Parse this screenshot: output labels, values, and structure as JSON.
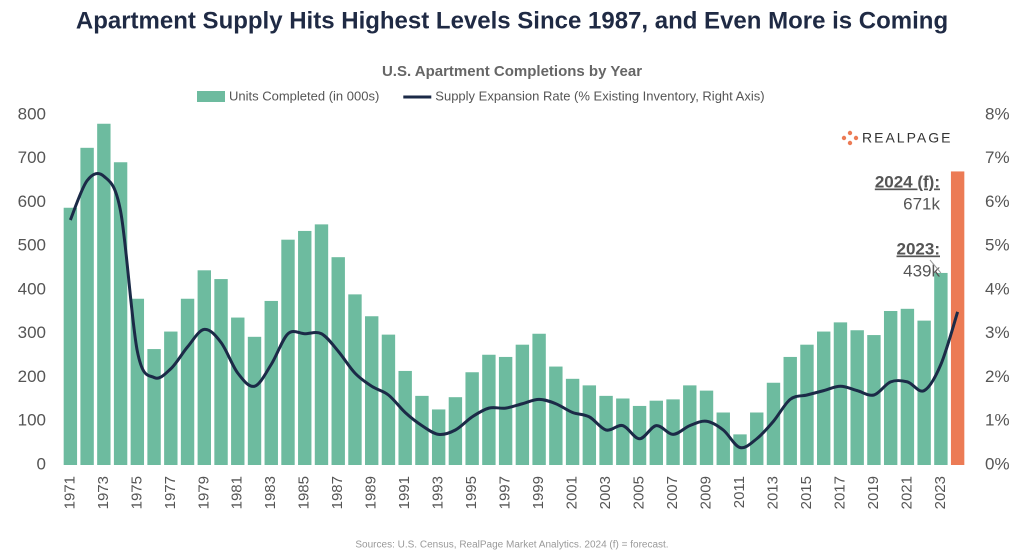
{
  "chart_data": {
    "type": "bar_line",
    "title": "Apartment Supply Hits Highest Levels Since 1987, and Even More is Coming",
    "subtitle": "U.S. Apartment Completions by Year",
    "logo": "REALPAGE",
    "source": "Sources: U.S. Census, RealPage Market Analytics. 2024 (f) = forecast.",
    "categories": [
      "1971",
      null,
      "1973",
      null,
      "1975",
      null,
      "1977",
      null,
      "1979",
      null,
      "1981",
      null,
      "1983",
      null,
      "1985",
      null,
      "1987",
      null,
      "1989",
      null,
      "1991",
      null,
      "1993",
      null,
      "1995",
      null,
      "1997",
      null,
      "1999",
      null,
      "2001",
      null,
      "2003",
      null,
      "2005",
      null,
      "2007",
      null,
      "2009",
      null,
      "2011",
      null,
      "2013",
      null,
      "2015",
      null,
      "2017",
      null,
      "2019",
      null,
      "2021",
      null,
      "2023",
      null
    ],
    "series": [
      {
        "name": "Units Completed (in 000s)",
        "type": "bar",
        "color": "#6dbb9f",
        "colors": [
          "#6dbb9f",
          "#6dbb9f",
          "#6dbb9f",
          "#6dbb9f",
          "#6dbb9f",
          "#6dbb9f",
          "#6dbb9f",
          "#6dbb9f",
          "#6dbb9f",
          "#6dbb9f",
          "#6dbb9f",
          "#6dbb9f",
          "#6dbb9f",
          "#6dbb9f",
          "#6dbb9f",
          "#6dbb9f",
          "#6dbb9f",
          "#6dbb9f",
          "#6dbb9f",
          "#6dbb9f",
          "#6dbb9f",
          "#6dbb9f",
          "#6dbb9f",
          "#6dbb9f",
          "#6dbb9f",
          "#6dbb9f",
          "#6dbb9f",
          "#6dbb9f",
          "#6dbb9f",
          "#6dbb9f",
          "#6dbb9f",
          "#6dbb9f",
          "#6dbb9f",
          "#6dbb9f",
          "#6dbb9f",
          "#6dbb9f",
          "#6dbb9f",
          "#6dbb9f",
          "#6dbb9f",
          "#6dbb9f",
          "#6dbb9f",
          "#6dbb9f",
          "#6dbb9f",
          "#6dbb9f",
          "#6dbb9f",
          "#6dbb9f",
          "#6dbb9f",
          "#6dbb9f",
          "#6dbb9f",
          "#6dbb9f",
          "#6dbb9f",
          "#6dbb9f",
          "#6dbb9f",
          "#ec7b55"
        ],
        "values": [
          588,
          725,
          780,
          692,
          380,
          265,
          305,
          380,
          445,
          425,
          337,
          293,
          375,
          515,
          535,
          550,
          475,
          390,
          340,
          298,
          215,
          158,
          127,
          155,
          212,
          252,
          247,
          275,
          300,
          225,
          197,
          182,
          158,
          152,
          135,
          147,
          150,
          182,
          170,
          120,
          70,
          120,
          188,
          247,
          275,
          305,
          326,
          308,
          297,
          352,
          357,
          330,
          439,
          671
        ]
      },
      {
        "name": "Supply Expansion Rate (% Existing Inventory, Right Axis)",
        "type": "line",
        "axis": "y2",
        "color": "#1b2a47",
        "values": [
          5.6,
          6.5,
          6.6,
          5.8,
          2.6,
          2.0,
          2.2,
          2.7,
          3.1,
          2.8,
          2.1,
          1.8,
          2.3,
          3.0,
          3.0,
          3.0,
          2.6,
          2.1,
          1.8,
          1.6,
          1.2,
          0.9,
          0.7,
          0.8,
          1.1,
          1.3,
          1.3,
          1.4,
          1.5,
          1.4,
          1.2,
          1.1,
          0.8,
          0.9,
          0.6,
          0.9,
          0.7,
          0.9,
          1.0,
          0.8,
          0.4,
          0.6,
          1.0,
          1.5,
          1.6,
          1.7,
          1.8,
          1.7,
          1.6,
          1.9,
          1.9,
          1.7,
          2.3,
          3.5
        ]
      }
    ],
    "annotations": [
      {
        "lines": [
          "2024 (f):",
          "671k"
        ]
      },
      {
        "lines": [
          "2023:",
          "439k"
        ]
      }
    ],
    "ylim": [
      0,
      800
    ],
    "yticks": [
      0,
      100,
      200,
      300,
      400,
      500,
      600,
      700,
      800
    ],
    "y2lim": [
      0,
      8
    ],
    "y2ticks": [
      {
        "value": 0,
        "label": "0%"
      },
      {
        "value": 1,
        "label": "1%"
      },
      {
        "value": 2,
        "label": "2%"
      },
      {
        "value": 3,
        "label": "3%"
      },
      {
        "value": 4,
        "label": "4%"
      },
      {
        "value": 5,
        "label": "5%"
      },
      {
        "value": 6,
        "label": "6%"
      },
      {
        "value": 7,
        "label": "7%"
      },
      {
        "value": 8,
        "label": "8%"
      }
    ],
    "grid": false
  }
}
